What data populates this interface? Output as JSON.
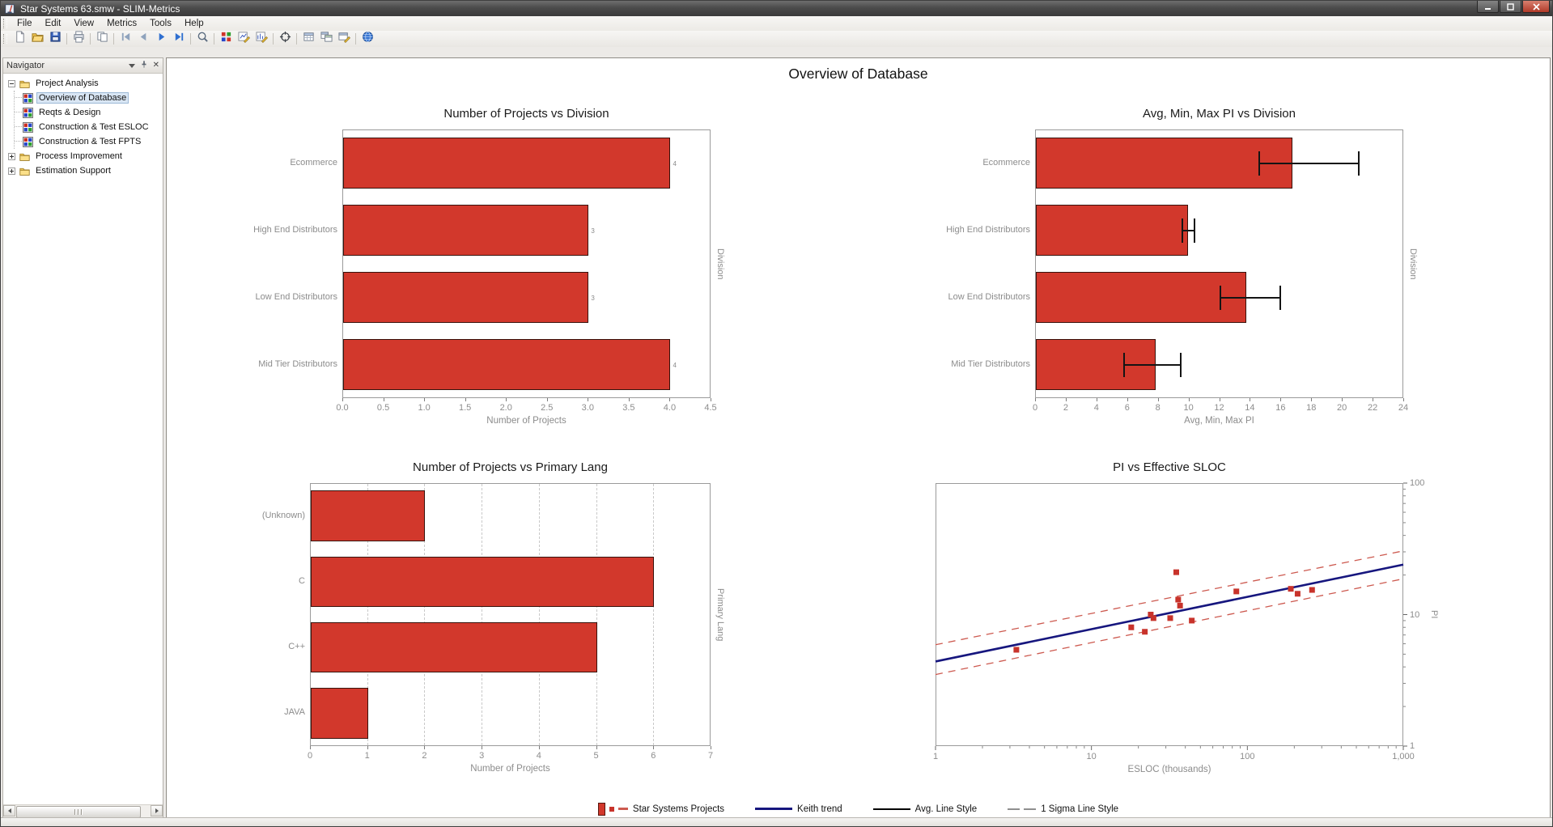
{
  "window": {
    "title": "Star Systems 63.smw - SLIM-Metrics"
  },
  "menu": {
    "items": [
      "File",
      "Edit",
      "View",
      "Metrics",
      "Tools",
      "Help"
    ]
  },
  "toolbar": {
    "groups": [
      [
        {
          "name": "new",
          "icon": "new-file-icon"
        },
        {
          "name": "open",
          "icon": "open-folder-icon"
        },
        {
          "name": "save",
          "icon": "save-icon"
        }
      ],
      [
        {
          "name": "print",
          "icon": "print-icon"
        }
      ],
      [
        {
          "name": "copy",
          "icon": "copy-icon"
        }
      ],
      [
        {
          "name": "go-first",
          "icon": "go-first-icon"
        },
        {
          "name": "go-previous",
          "icon": "go-previous-icon"
        },
        {
          "name": "go-next",
          "icon": "go-next-icon"
        },
        {
          "name": "go-last",
          "icon": "go-last-icon"
        }
      ],
      [
        {
          "name": "zoom",
          "icon": "zoom-icon"
        }
      ],
      [
        {
          "name": "chart-grid",
          "icon": "chart-grid-icon"
        },
        {
          "name": "chart-edit",
          "icon": "chart-edit-icon"
        },
        {
          "name": "chart-style",
          "icon": "chart-style-icon"
        }
      ],
      [
        {
          "name": "crosshair",
          "icon": "crosshair-icon"
        }
      ],
      [
        {
          "name": "report-table",
          "icon": "table-icon"
        },
        {
          "name": "report-copy",
          "icon": "table-copy-icon"
        },
        {
          "name": "report-edit",
          "icon": "table-edit-icon"
        }
      ],
      [
        {
          "name": "help",
          "icon": "help-globe-icon"
        }
      ]
    ]
  },
  "navigator": {
    "title": "Navigator",
    "tree": [
      {
        "label": "Project Analysis",
        "icon": "folder-icon",
        "expanded": true,
        "children": [
          {
            "label": "Overview of Database",
            "icon": "chart-view-icon",
            "selected": true
          },
          {
            "label": "Reqts & Design",
            "icon": "chart-view-icon"
          },
          {
            "label": "Construction & Test ESLOC",
            "icon": "chart-view-icon"
          },
          {
            "label": "Construction & Test FPTS",
            "icon": "chart-view-icon"
          }
        ]
      },
      {
        "label": "Process Improvement",
        "icon": "folder-icon",
        "expanded": false
      },
      {
        "label": "Estimation Support",
        "icon": "folder-icon",
        "expanded": false
      }
    ]
  },
  "main": {
    "title": "Overview of Database"
  },
  "colors": {
    "bar_fill": "#d2382c",
    "bar_border": "#38120c",
    "trend_line": "#16167e",
    "sigma_line": "#cd5a50",
    "scatter_point": "#c8332b",
    "error_bar": "#141414",
    "axis_text": "#8c8c8c"
  },
  "chart_data": [
    {
      "id": "projects-by-division",
      "type": "bar",
      "orientation": "horizontal",
      "title": "Number of Projects vs Division",
      "categories": [
        "Ecommerce",
        "High End Distributors",
        "Low End Distributors",
        "Mid Tier Distributors"
      ],
      "values": [
        4,
        3,
        3,
        4
      ],
      "bar_labels": [
        "4",
        "3",
        "3",
        "4"
      ],
      "xlabel": "Number of Projects",
      "ylabel_right": "Division",
      "xlim": [
        0,
        4.5
      ],
      "xticks": [
        0,
        0.5,
        1,
        1.5,
        2,
        2.5,
        3,
        3.5,
        4,
        4.5
      ],
      "xtick_labels": [
        "0.0",
        "0.5",
        "1.0",
        "1.5",
        "2.0",
        "2.5",
        "3.0",
        "3.5",
        "4.0",
        "4.5"
      ],
      "grid": false
    },
    {
      "id": "pi-by-division",
      "type": "bar",
      "orientation": "horizontal",
      "title": "Avg, Min, Max PI vs Division",
      "categories": [
        "Ecommerce",
        "High End Distributors",
        "Low End Distributors",
        "Mid Tier Distributors"
      ],
      "values": [
        16.7,
        9.9,
        13.7,
        7.8
      ],
      "error_min": [
        14.6,
        9.6,
        12.1,
        5.8
      ],
      "error_max": [
        21.1,
        10.4,
        16.0,
        9.5
      ],
      "xlabel": "Avg, Min, Max PI",
      "ylabel_right": "Division",
      "xlim": [
        0,
        24
      ],
      "xticks": [
        0,
        2,
        4,
        6,
        8,
        10,
        12,
        14,
        16,
        18,
        20,
        22,
        24
      ],
      "xtick_labels": [
        "0",
        "2",
        "4",
        "6",
        "8",
        "10",
        "12",
        "14",
        "16",
        "18",
        "20",
        "22",
        "24"
      ],
      "grid": false
    },
    {
      "id": "projects-by-lang",
      "type": "bar",
      "orientation": "horizontal",
      "title": "Number of Projects vs Primary Lang",
      "categories": [
        "(Unknown)",
        "C",
        "C++",
        "JAVA"
      ],
      "values": [
        2,
        6,
        5,
        1
      ],
      "xlabel": "Number of Projects",
      "ylabel_right": "Primary Lang",
      "xlim": [
        0,
        7
      ],
      "xticks": [
        0,
        1,
        2,
        3,
        4,
        5,
        6,
        7
      ],
      "xtick_labels": [
        "0",
        "1",
        "2",
        "3",
        "4",
        "5",
        "6",
        "7"
      ],
      "grid": true
    },
    {
      "id": "pi-vs-esloc",
      "type": "scatter",
      "title": "PI vs Effective SLOC",
      "xlabel": "ESLOC (thousands)",
      "ylabel_right": "PI",
      "xscale": "log",
      "yscale": "log",
      "xlim": [
        1,
        1000
      ],
      "ylim": [
        1,
        100
      ],
      "xticks": [
        1,
        10,
        100,
        1000
      ],
      "xtick_labels": [
        "1",
        "10",
        "100",
        "1,000"
      ],
      "yticks": [
        1,
        10,
        100
      ],
      "ytick_labels": [
        "1",
        "10",
        "100"
      ],
      "points": [
        [
          3.3,
          5.4
        ],
        [
          18,
          8
        ],
        [
          22,
          7.4
        ],
        [
          24,
          10
        ],
        [
          25,
          9.4
        ],
        [
          32,
          9.4
        ],
        [
          35,
          21
        ],
        [
          36,
          13
        ],
        [
          37,
          11.7
        ],
        [
          44,
          9
        ],
        [
          85,
          15
        ],
        [
          190,
          15.7
        ],
        [
          210,
          14.4
        ],
        [
          260,
          15.4
        ]
      ],
      "trend": {
        "name": "Keith trend",
        "x": [
          1,
          1000
        ],
        "y": [
          4.4,
          24
        ]
      },
      "sigma_upper": {
        "x": [
          1,
          1000
        ],
        "y": [
          5.9,
          30.5
        ]
      },
      "sigma_lower": {
        "x": [
          1,
          1000
        ],
        "y": [
          3.5,
          18.7
        ]
      }
    }
  ],
  "legend": {
    "items": [
      {
        "label": "Star Systems Projects",
        "swatch": "red-bar-point-dash"
      },
      {
        "label": "Keith trend",
        "swatch": "navy-line"
      },
      {
        "label": "Avg. Line Style",
        "swatch": "black-line"
      },
      {
        "label": "1 Sigma Line Style",
        "swatch": "gray-dash"
      }
    ]
  }
}
